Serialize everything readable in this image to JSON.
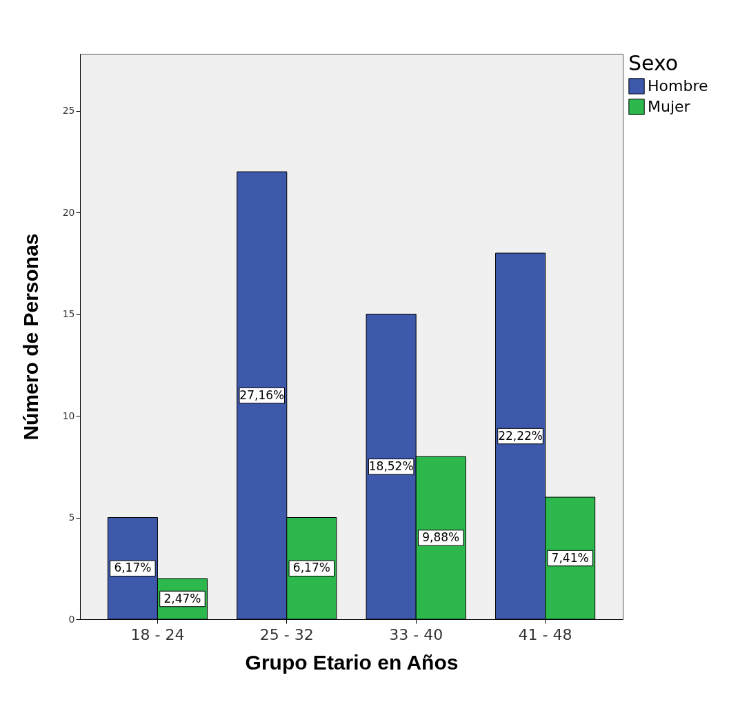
{
  "chart_data": {
    "type": "bar",
    "xlabel": "Grupo Etario en Años",
    "ylabel": "Número de Personas",
    "legend_title": "Sexo",
    "legend": "right",
    "categories": [
      "18 - 24",
      "25 - 32",
      "33 - 40",
      "41 - 48"
    ],
    "series": [
      {
        "name": "Hombre",
        "color": "#3e58ac",
        "values": [
          5,
          22,
          15,
          18
        ]
      },
      {
        "name": "Mujer",
        "color": "#2db84d",
        "values": [
          2,
          5,
          8,
          6
        ]
      }
    ],
    "annotations": [
      {
        "text": "6,17%",
        "x": "18 - 24",
        "y": 2.5
      },
      {
        "text": "27,16%",
        "x": "25 - 32",
        "y": 11
      },
      {
        "text": "18,52%",
        "x": "33 - 40",
        "y": 7.5
      },
      {
        "text": "22,22%",
        "x": "41 - 48",
        "y": 9
      },
      {
        "text": "2,47%",
        "x": "18 - 24",
        "y": 1
      },
      {
        "text": "6,17%",
        "x": "25 - 32",
        "y": 2.5
      },
      {
        "text": "9,88%",
        "x": "33 - 40",
        "y": 4
      },
      {
        "text": "7,41%",
        "x": "41 - 48",
        "y": 3
      }
    ],
    "ylim": [
      0,
      27.8
    ],
    "yticks": [
      0,
      5,
      10,
      15,
      20,
      25
    ],
    "grid": false
  }
}
